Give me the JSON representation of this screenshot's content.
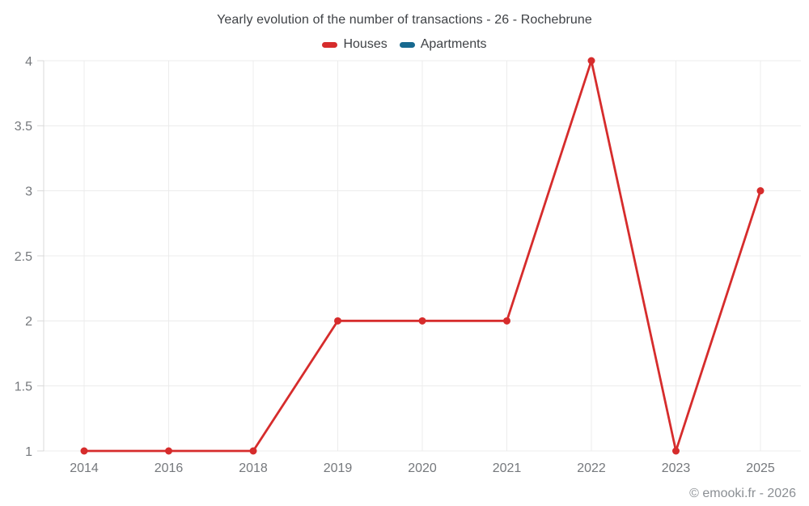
{
  "chart_data": {
    "type": "line",
    "title": "Yearly evolution of the number of transactions - 26 - Rochebrune",
    "categories": [
      "2014",
      "2016",
      "2018",
      "2019",
      "2020",
      "2021",
      "2022",
      "2023",
      "2025"
    ],
    "series": [
      {
        "name": "Houses",
        "color": "#d62c2c",
        "values": [
          1,
          1,
          1,
          2,
          2,
          2,
          4,
          1,
          3
        ]
      },
      {
        "name": "Apartments",
        "color": "#17698f",
        "values": []
      }
    ],
    "yticks": [
      1,
      1.5,
      2,
      2.5,
      3,
      3.5,
      4
    ],
    "ylim": [
      1,
      4
    ],
    "grid": true,
    "legend_position": "top",
    "xlabel": "",
    "ylabel": ""
  },
  "colors": {
    "grid_line": "#ececec",
    "axis_line": "#d9d9d9",
    "tick_label": "#75787c",
    "title_text": "#3f4246",
    "footer_text": "#8b8f94",
    "background": "#ffffff"
  },
  "footer": {
    "credit": "© emooki.fr - 2026"
  }
}
